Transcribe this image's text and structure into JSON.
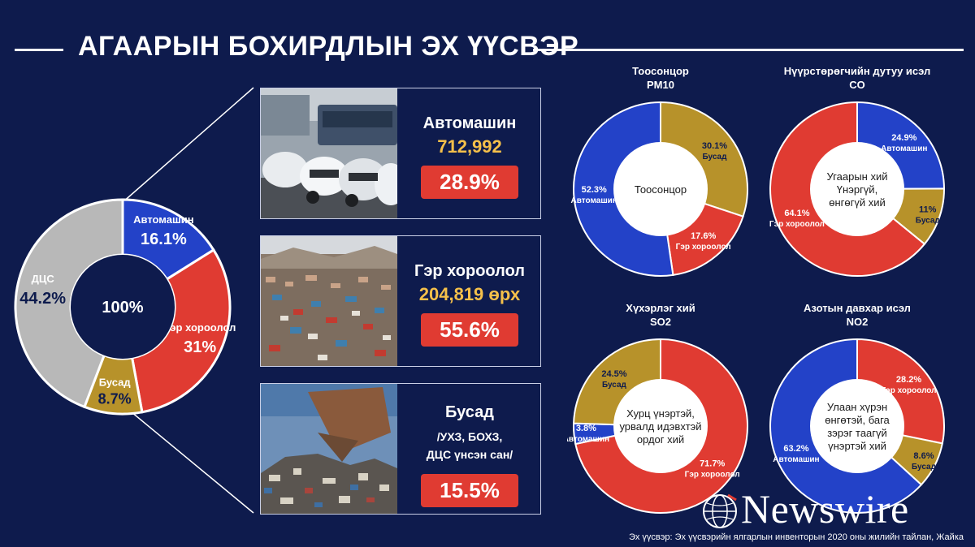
{
  "title": "АГААРЫН БОХИРДЛЫН ЭХ ҮҮСВЭР",
  "colors": {
    "background": "#0e1b4d",
    "blue": "#2342c8",
    "red": "#e03b32",
    "gold": "#b7922a",
    "gray": "#b8b8b8",
    "yellow_text": "#f5c04a"
  },
  "chart_data": [
    {
      "type": "pie",
      "center_label": "100%",
      "slices": [
        {
          "label": "Автомашин",
          "value": 16.1,
          "text": "16.1%",
          "color": "#2342c8"
        },
        {
          "label": "Гэр хороолол",
          "value": 31,
          "text": "31%",
          "color": "#e03b32"
        },
        {
          "label": "Бусад",
          "value": 8.7,
          "text": "8.7%",
          "color": "#b7922a"
        },
        {
          "label": "ДЦС",
          "value": 44.2,
          "text": "44.2%",
          "color": "#b8b8b8"
        }
      ]
    },
    {
      "type": "pie",
      "title": "Тоосонцор",
      "subtitle": "PM10",
      "center_lines": [
        "Тоосонцор"
      ],
      "slices": [
        {
          "label": "Бусад",
          "value": 30.1,
          "text": "30.1%",
          "color": "#b7922a"
        },
        {
          "label": "Гэр хороолол",
          "value": 17.6,
          "text": "17.6%",
          "color": "#e03b32"
        },
        {
          "label": "Автомашин",
          "value": 52.3,
          "text": "52.3%",
          "color": "#2342c8"
        }
      ]
    },
    {
      "type": "pie",
      "title": "Нүүрстөрөгчийн дутуу исэл",
      "subtitle": "CO",
      "center_lines": [
        "Угаарын хий",
        "Үнэргүй,",
        "өнгөгүй хий"
      ],
      "slices": [
        {
          "label": "Автомашин",
          "value": 24.9,
          "text": "24.9%",
          "color": "#2342c8"
        },
        {
          "label": "Бусад",
          "value": 11,
          "text": "11%",
          "color": "#b7922a"
        },
        {
          "label": "Гэр хороолол",
          "value": 64.1,
          "text": "64.1%",
          "color": "#e03b32"
        }
      ]
    },
    {
      "type": "pie",
      "title": "Хүхэрлэг хий",
      "subtitle": "SO2",
      "center_lines": [
        "Хурц үнэртэй,",
        "урвалд идэвхтэй",
        "ордог хий"
      ],
      "slices": [
        {
          "label": "Гэр хороолол",
          "value": 71.7,
          "text": "71.7%",
          "color": "#e03b32"
        },
        {
          "label": "Автомашин",
          "value": 3.8,
          "text": "3.8%",
          "color": "#2342c8"
        },
        {
          "label": "Бусад",
          "value": 24.5,
          "text": "24.5%",
          "color": "#b7922a"
        }
      ]
    },
    {
      "type": "pie",
      "title": "Азотын давхар исэл",
      "subtitle": "NO2",
      "center_lines": [
        "Улаан хүрэн",
        "өнгөтэй, бага",
        "зэрэг таагүй",
        "үнэртэй хий"
      ],
      "slices": [
        {
          "label": "Гэр хороолол",
          "value": 28.2,
          "text": "28.2%",
          "color": "#e03b32"
        },
        {
          "label": "Бусад",
          "value": 8.6,
          "text": "8.6%",
          "color": "#b7922a"
        },
        {
          "label": "Автомашин",
          "value": 63.2,
          "text": "63.2%",
          "color": "#2342c8"
        }
      ]
    }
  ],
  "cards": [
    {
      "title": "Автомашин",
      "value": "712,992",
      "percent": "28.9%",
      "photo": "traffic-photo"
    },
    {
      "title": "Гэр хороолол",
      "value": "204,819 өрх",
      "percent": "55.6%",
      "photo": "ger-district-photo"
    },
    {
      "title": "Бусад",
      "sub_lines": [
        "/УХЗ, БОХЗ,",
        "ДЦС үнсэн сан/"
      ],
      "percent": "15.5%",
      "photo": "landfill-photo"
    }
  ],
  "brand": "Newswire",
  "source": "Эх үүсвэр: Эх үүсвэрийн ялгарлын инвенторын 2020 оны жилийн тайлан, Жайка"
}
